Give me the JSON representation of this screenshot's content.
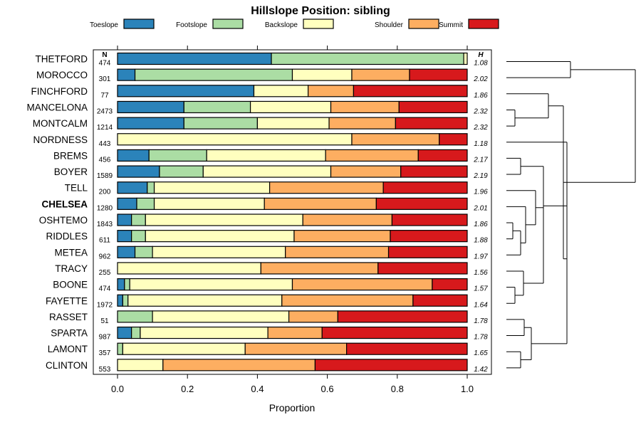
{
  "chart_data": {
    "type": "bar",
    "subtype": "stacked-horizontal-proportion",
    "title": "Hillslope Position: sibling",
    "xlabel": "Proportion",
    "ylabel": "",
    "xlim": [
      0,
      1
    ],
    "xticks": [
      "0.0",
      "0.2",
      "0.4",
      "0.6",
      "0.8",
      "1.0"
    ],
    "xtick_values": [
      0,
      0.2,
      0.4,
      0.6,
      0.8,
      1.0
    ],
    "n_header": "N",
    "h_header": "H",
    "legend_position": "top",
    "series": [
      {
        "name": "Toeslope",
        "color": "#2b83ba"
      },
      {
        "name": "Footslope",
        "color": "#abdda4"
      },
      {
        "name": "Backslope",
        "color": "#ffffbf"
      },
      {
        "name": "Shoulder",
        "color": "#fdae61"
      },
      {
        "name": "Summit",
        "color": "#d7191c"
      }
    ],
    "rows": [
      {
        "name": "THETFORD",
        "n": "474",
        "h": "1.08",
        "bold": false,
        "values": [
          0.44,
          0.55,
          0.01,
          0,
          0
        ]
      },
      {
        "name": "MOROCCO",
        "n": "301",
        "h": "2.02",
        "bold": false,
        "values": [
          0.05,
          0.45,
          0.17,
          0.165,
          0.165
        ]
      },
      {
        "name": "FINCHFORD",
        "n": "77",
        "h": "1.86",
        "bold": false,
        "values": [
          0.39,
          0,
          0.155,
          0.13,
          0.325
        ]
      },
      {
        "name": "MANCELONA",
        "n": "2473",
        "h": "2.32",
        "bold": false,
        "values": [
          0.19,
          0.19,
          0.23,
          0.195,
          0.195
        ]
      },
      {
        "name": "MONTCALM",
        "n": "1214",
        "h": "2.32",
        "bold": false,
        "values": [
          0.19,
          0.21,
          0.205,
          0.19,
          0.205
        ]
      },
      {
        "name": "NORDNESS",
        "n": "443",
        "h": "1.18",
        "bold": false,
        "values": [
          0,
          0,
          0.67,
          0.25,
          0.08
        ]
      },
      {
        "name": "BREMS",
        "n": "456",
        "h": "2.17",
        "bold": false,
        "values": [
          0.09,
          0.165,
          0.34,
          0.265,
          0.14
        ]
      },
      {
        "name": "BOYER",
        "n": "1589",
        "h": "2.19",
        "bold": false,
        "values": [
          0.12,
          0.125,
          0.365,
          0.2,
          0.19
        ]
      },
      {
        "name": "TELL",
        "n": "200",
        "h": "1.96",
        "bold": false,
        "values": [
          0.085,
          0.02,
          0.33,
          0.325,
          0.24
        ]
      },
      {
        "name": "CHELSEA",
        "n": "1280",
        "h": "2.01",
        "bold": true,
        "values": [
          0.055,
          0.05,
          0.315,
          0.32,
          0.26
        ]
      },
      {
        "name": "OSHTEMO",
        "n": "1843",
        "h": "1.86",
        "bold": false,
        "values": [
          0.04,
          0.04,
          0.45,
          0.255,
          0.215
        ]
      },
      {
        "name": "RIDDLES",
        "n": "611",
        "h": "1.88",
        "bold": false,
        "values": [
          0.04,
          0.04,
          0.425,
          0.275,
          0.22
        ]
      },
      {
        "name": "METEA",
        "n": "962",
        "h": "1.97",
        "bold": false,
        "values": [
          0.05,
          0.05,
          0.38,
          0.295,
          0.225
        ]
      },
      {
        "name": "TRACY",
        "n": "255",
        "h": "1.56",
        "bold": false,
        "values": [
          0,
          0,
          0.41,
          0.335,
          0.255
        ]
      },
      {
        "name": "BOONE",
        "n": "474",
        "h": "1.57",
        "bold": false,
        "values": [
          0.02,
          0.015,
          0.465,
          0.4,
          0.1
        ]
      },
      {
        "name": "FAYETTE",
        "n": "1972",
        "h": "1.64",
        "bold": false,
        "values": [
          0.015,
          0.015,
          0.44,
          0.375,
          0.155
        ]
      },
      {
        "name": "RASSET",
        "n": "51",
        "h": "1.78",
        "bold": false,
        "values": [
          0,
          0.1,
          0.39,
          0.14,
          0.37
        ]
      },
      {
        "name": "SPARTA",
        "n": "987",
        "h": "1.78",
        "bold": false,
        "values": [
          0.04,
          0.025,
          0.365,
          0.155,
          0.415
        ]
      },
      {
        "name": "LAMONT",
        "n": "357",
        "h": "1.65",
        "bold": false,
        "values": [
          0,
          0.015,
          0.35,
          0.29,
          0.345
        ]
      },
      {
        "name": "CLINTON",
        "n": "553",
        "h": "1.42",
        "bold": false,
        "values": [
          0,
          0,
          0.13,
          0.435,
          0.435
        ]
      }
    ]
  }
}
